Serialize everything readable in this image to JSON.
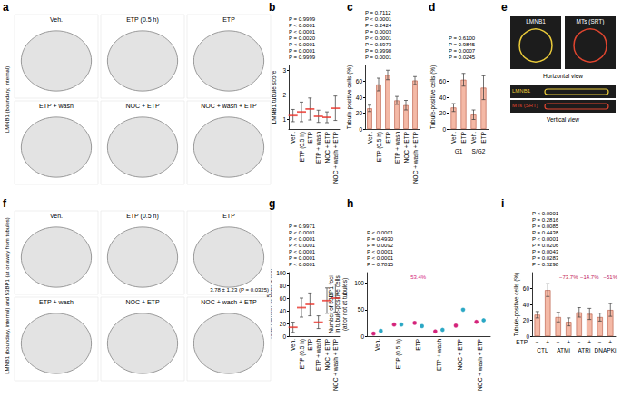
{
  "images": [
    {
      "letter": "a",
      "caption": "LMNB1 (boundary, internal)",
      "tiles": [
        "Veh.",
        "ETP (0.5 h)",
        "ETP",
        "ETP + wash",
        "NOC + ETP",
        "NOC + wash + ETP"
      ]
    },
    {
      "letter": "f",
      "caption": "LMNB1 (boundary, internal) and 53BP1 (at or away from tubules)",
      "tiles": [
        "Veh.",
        "ETP (0.5 h)",
        "ETP",
        "ETP + wash",
        "NOC + ETP",
        "NOC + wash + ETP"
      ],
      "tile_note": {
        "tile": "ETP",
        "text": "3.78 ± 1.23 (P = 0.0325)"
      }
    },
    {
      "letter": "e",
      "tiles": [
        "LMNB1",
        "MTs (SRT)"
      ],
      "views": [
        "Horizontal view",
        "Vertical view"
      ]
    }
  ],
  "chart_data": [
    {
      "panel": "b",
      "type": "scatter",
      "marker": "dash",
      "color": "#e8332a",
      "y_label": [
        "LMNB1 tubule score"
      ],
      "categories": [
        "Veh.",
        "ETP (0.5 h)",
        "ETP",
        "ETP + wash",
        "NOC + ETP",
        "NOC + wash + ETP"
      ],
      "values": [
        1.15,
        1.3,
        1.42,
        1.12,
        1.08,
        1.45
      ],
      "errors": [
        0.25,
        0.4,
        0.45,
        0.25,
        0.22,
        0.5
      ],
      "ylim": [
        0.6,
        3.2
      ],
      "yticks": [
        1,
        2,
        3
      ],
      "p_values": [
        "P = 0.9999",
        "P < 0.0001",
        "P < 0.0001",
        "P = 0.0020",
        "P < 0.0001",
        "P = 0.0001",
        "P = 0.9999"
      ]
    },
    {
      "panel": "c",
      "type": "bar",
      "color": "#f4b9a6",
      "y_label": [
        "Tubule-positive cells (%)"
      ],
      "categories": [
        "Veh.",
        "ETP (0.5 h)",
        "ETP",
        "ETP + wash",
        "NOC + ETP",
        "NOC + wash + ETP"
      ],
      "values": [
        26,
        56,
        68,
        36,
        30,
        61
      ],
      "errors": [
        4,
        8,
        6,
        5,
        6,
        5
      ],
      "ylim": [
        0,
        80
      ],
      "yticks": [
        0,
        20,
        40,
        60
      ],
      "p_values": [
        "P = 0.7112",
        "P < 0.0001",
        "P = 0.2424",
        "P = 0.0003",
        "P < 0.0001",
        "P = 0.6973",
        "P = 0.9998",
        "P = 0.0001"
      ]
    },
    {
      "panel": "d",
      "type": "bar",
      "color": "#f4b9a6",
      "y_label": [
        "Tubule-positive cells (%)"
      ],
      "categories": [
        "Veh.",
        "ETP",
        "Veh.",
        "ETP"
      ],
      "group_labels": [
        "G1",
        "S/G2"
      ],
      "values": [
        27,
        62,
        18,
        52
      ],
      "errors": [
        5,
        8,
        6,
        15
      ],
      "ylim": [
        0,
        80
      ],
      "yticks": [
        0,
        20,
        40,
        60
      ],
      "p_values": [
        "P = 0.6100",
        "P = 0.9845",
        "P = 0.0007",
        "P = 0.0245"
      ]
    },
    {
      "panel": "g",
      "type": "scatter",
      "marker": "dash",
      "color": "#e8332a",
      "y_label": [
        "Total number of 53BP1 foci"
      ],
      "categories": [
        "Veh.",
        "ETP (0.5 h)",
        "ETP",
        "ETP + wash",
        "NOC + ETP",
        "NOC + wash + ETP"
      ],
      "values": [
        14,
        45,
        50,
        22,
        56,
        60
      ],
      "errors": [
        8,
        15,
        18,
        10,
        20,
        22
      ],
      "ylim": [
        0,
        100
      ],
      "yticks": [
        0,
        20,
        40,
        60,
        80,
        100
      ],
      "p_values": [
        "P = 0.9971",
        "P < 0.0001",
        "P < 0.0001",
        "P < 0.0001",
        "P < 0.0001",
        "P = 0.0001",
        "P < 0.0001"
      ]
    },
    {
      "panel": "h",
      "type": "scatter",
      "y_label": [
        "Number of 53BP1 foci",
        "in tubule-positive cells",
        "(at or not at tubules)"
      ],
      "categories": [
        "Veh.",
        "ETP (0.5 h)",
        "ETP",
        "ETP + wash",
        "NOC + ETP",
        "NOC + wash + ETP"
      ],
      "series": [
        {
          "color": "#d4237a",
          "values": [
            5,
            22,
            25,
            9,
            20,
            27
          ]
        },
        {
          "color": "#2aa7c4",
          "values": [
            10,
            22,
            19,
            12,
            50,
            30
          ]
        }
      ],
      "note": {
        "text": "53.4%",
        "category": "ETP"
      },
      "ylim": [
        0,
        120
      ],
      "yticks": [
        0,
        50,
        100
      ],
      "p_values": [
        "P < 0.0001",
        "P = 0.4930",
        "P = 0.0092",
        "P < 0.0001",
        "P < 0.0001",
        "P = 0.7815"
      ]
    },
    {
      "panel": "i",
      "type": "bar",
      "color": "#f4b9a6",
      "y_label": [
        "Tubule-positive cells (%)"
      ],
      "x_label": "ETP",
      "categories": [
        "−",
        "+",
        "−",
        "+",
        "−",
        "+",
        "−",
        "+"
      ],
      "group_labels": [
        "CTL",
        "ATMi",
        "ATRi",
        "DNAPKi"
      ],
      "change_labels": [
        null,
        "−73.7%",
        "−14.7%",
        "−51%"
      ],
      "values": [
        27,
        58,
        24,
        18,
        30,
        28,
        24,
        33
      ],
      "errors": [
        4,
        8,
        6,
        5,
        6,
        7,
        5,
        8
      ],
      "ylim": [
        0,
        80
      ],
      "yticks": [
        0,
        20,
        40,
        60
      ],
      "p_values": [
        "P < 0.0001",
        "P = 0.2816",
        "P = 0.0085",
        "P = 0.4438",
        "P < 0.0001",
        "P = 0.0206",
        "P = 0.0043",
        "P = 0.0283",
        "P = 0.3298"
      ]
    }
  ]
}
